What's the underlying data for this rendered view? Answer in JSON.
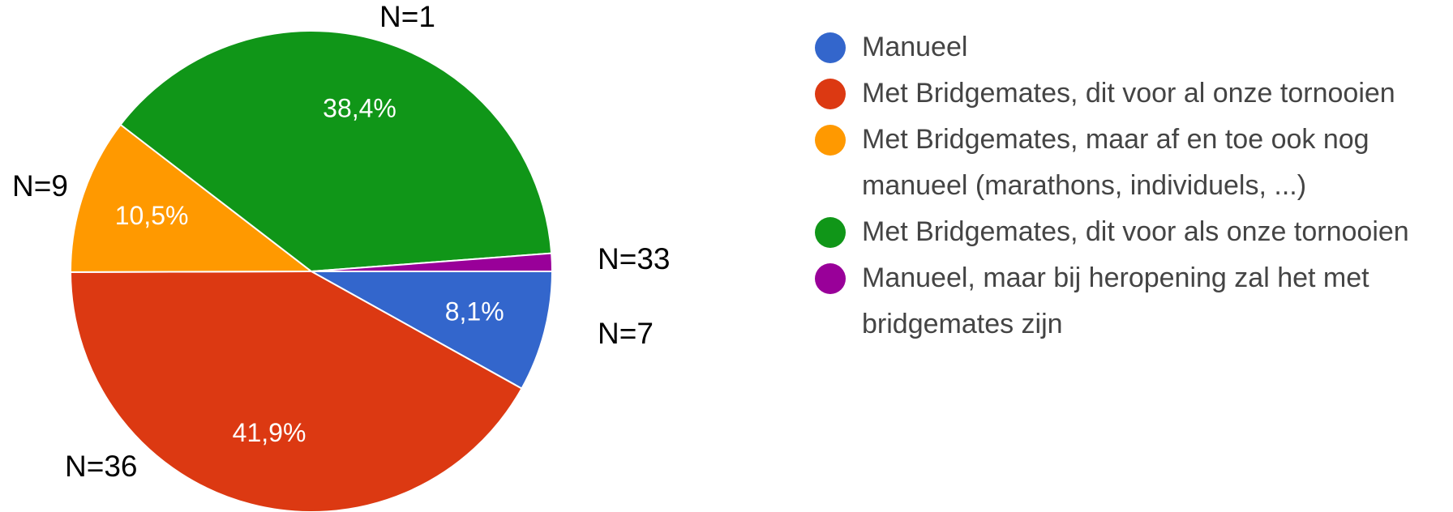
{
  "chart_data": {
    "type": "pie",
    "categories": [
      "Manueel",
      "Met Bridgemates, dit voor al onze tornooien",
      "Met Bridgemates, maar af en toe ook nog manueel (marathons, individuels, ...)",
      "Met Bridgemates, dit voor als onze tornooien",
      "Manueel, maar bij heropening zal het met bridgemates zijn"
    ],
    "values": [
      8.1,
      41.9,
      10.5,
      38.4,
      1.2
    ],
    "value_labels": [
      "8,1%",
      "41,9%",
      "10,5%",
      "38,4%",
      null
    ],
    "count_labels": [
      "N=7",
      "N=36",
      "N=9",
      "N=33",
      "N=1"
    ],
    "colors": [
      "#3366cc",
      "#dc3912",
      "#ff9900",
      "#109618",
      "#990099"
    ],
    "legend": "right"
  }
}
